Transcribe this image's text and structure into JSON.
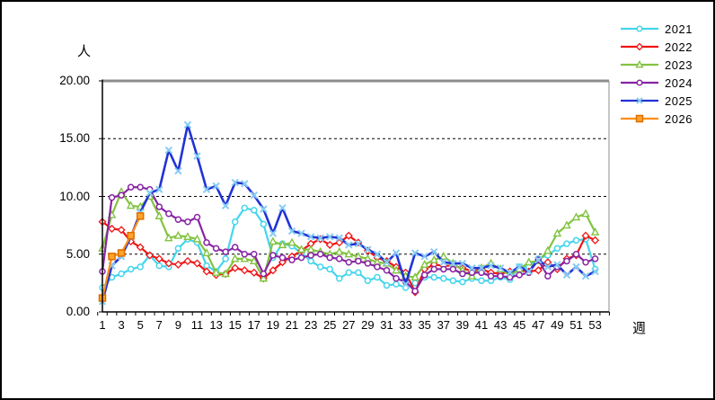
{
  "chart_data": {
    "type": "line",
    "title": "",
    "y_axis": {
      "label": "人",
      "min": 0,
      "max": 20,
      "tick_labels": [
        "0.00",
        "5.00",
        "10.00",
        "15.00",
        "20.00"
      ]
    },
    "x_axis": {
      "label": "週",
      "weeks": 53,
      "tick_labels": [
        "1",
        "3",
        "5",
        "7",
        "9",
        "11",
        "13",
        "15",
        "17",
        "19",
        "21",
        "23",
        "25",
        "27",
        "29",
        "31",
        "33",
        "35",
        "37",
        "39",
        "41",
        "43",
        "45",
        "47",
        "49",
        "51",
        "53"
      ]
    },
    "grid": "horizontal dashed at 5, 10, 15; solid frame",
    "legend_position": "top-right",
    "series": [
      {
        "name": "2021",
        "color": "#45D5EC",
        "marker": "circle",
        "values": [
          2.1,
          3.0,
          3.3,
          3.7,
          3.9,
          4.9,
          4.0,
          3.9,
          5.5,
          6.3,
          6.0,
          4.0,
          3.5,
          4.6,
          7.8,
          9.0,
          8.8,
          7.6,
          4.7,
          5.9,
          5.7,
          5.1,
          4.4,
          3.9,
          3.7,
          2.9,
          3.4,
          3.4,
          2.7,
          3.0,
          2.3,
          2.4,
          2.1,
          2.5,
          3.0,
          3.0,
          2.9,
          2.7,
          2.6,
          2.9,
          2.7,
          2.7,
          3.0,
          2.8,
          3.9,
          3.9,
          4.6,
          4.9,
          5.5,
          5.9,
          6.2,
          6.3,
          3.7
        ]
      },
      {
        "name": "2022",
        "color": "#F01414",
        "marker": "diamond",
        "values": [
          7.8,
          7.2,
          7.1,
          6.1,
          5.6,
          4.9,
          4.6,
          4.2,
          4.1,
          4.4,
          4.2,
          3.5,
          3.2,
          3.3,
          3.8,
          3.6,
          3.4,
          2.9,
          3.6,
          4.3,
          4.8,
          5.3,
          5.9,
          6.3,
          5.8,
          6.0,
          6.6,
          6.0,
          5.3,
          4.7,
          4.4,
          3.9,
          3.4,
          1.7,
          3.7,
          4.1,
          4.0,
          4.0,
          3.8,
          3.5,
          3.7,
          3.4,
          3.3,
          3.5,
          3.6,
          3.5,
          3.6,
          4.3,
          3.7,
          4.6,
          4.9,
          6.6,
          6.2
        ]
      },
      {
        "name": "2023",
        "color": "#82C341",
        "marker": "triangle",
        "values": [
          5.5,
          8.4,
          10.4,
          9.2,
          9.1,
          10.0,
          8.3,
          6.4,
          6.6,
          6.5,
          6.3,
          5.1,
          3.4,
          3.3,
          4.6,
          4.6,
          4.4,
          2.9,
          6.1,
          5.8,
          6.0,
          5.4,
          5.4,
          5.2,
          5.0,
          5.2,
          5.0,
          4.8,
          4.6,
          4.3,
          4.2,
          3.6,
          3.1,
          3.0,
          4.1,
          4.5,
          4.8,
          4.2,
          3.6,
          3.1,
          3.8,
          4.2,
          3.7,
          3.2,
          3.7,
          4.3,
          4.4,
          5.3,
          6.8,
          7.5,
          8.2,
          8.5,
          6.9
        ]
      },
      {
        "name": "2024",
        "color": "#8824A4",
        "marker": "circle",
        "values": [
          3.5,
          9.9,
          10.1,
          10.8,
          10.8,
          10.6,
          9.1,
          8.5,
          8.0,
          7.8,
          8.2,
          6.0,
          5.5,
          5.2,
          5.6,
          5.0,
          5.0,
          3.3,
          4.9,
          4.7,
          4.5,
          4.7,
          4.9,
          5.0,
          4.7,
          4.6,
          4.3,
          4.4,
          4.2,
          3.9,
          3.6,
          2.9,
          2.6,
          1.8,
          3.2,
          3.7,
          3.7,
          3.7,
          3.3,
          3.4,
          3.4,
          3.1,
          3.1,
          3.0,
          3.2,
          3.4,
          4.5,
          3.1,
          3.9,
          4.4,
          5.0,
          4.3,
          4.6
        ]
      },
      {
        "name": "2025",
        "color": "#2133D6",
        "marker": "x",
        "values": [
          0.9,
          4.0,
          4.8,
          6.5,
          8.6,
          10.3,
          10.6,
          14.0,
          12.2,
          16.2,
          13.5,
          10.6,
          10.9,
          9.2,
          11.2,
          11.1,
          10.1,
          8.9,
          6.8,
          9.0,
          7.0,
          6.8,
          6.5,
          6.4,
          6.5,
          6.4,
          5.8,
          5.9,
          5.4,
          5.0,
          4.3,
          5.1,
          2.4,
          5.1,
          4.8,
          5.2,
          4.3,
          4.2,
          4.2,
          3.8,
          3.8,
          4.0,
          3.8,
          3.4,
          3.9,
          3.5,
          4.5,
          3.9,
          4.1,
          3.2,
          3.9,
          3.1,
          3.5
        ]
      },
      {
        "name": "2026",
        "color": "#FF8E16",
        "marker": "square",
        "values": [
          1.2,
          4.8,
          5.1,
          6.6,
          8.3
        ]
      }
    ],
    "marker_colors": {
      "x_marker": "#86CCF4",
      "square_fill": "#FFA428",
      "square_border": "#DD6E00",
      "hollow_fill": "#FFFFFF"
    },
    "frame_colors": {
      "top_border": "#8C8C8C",
      "right_border": "#8C8C8C",
      "axis": "#000000",
      "gridline": "#000000"
    }
  }
}
